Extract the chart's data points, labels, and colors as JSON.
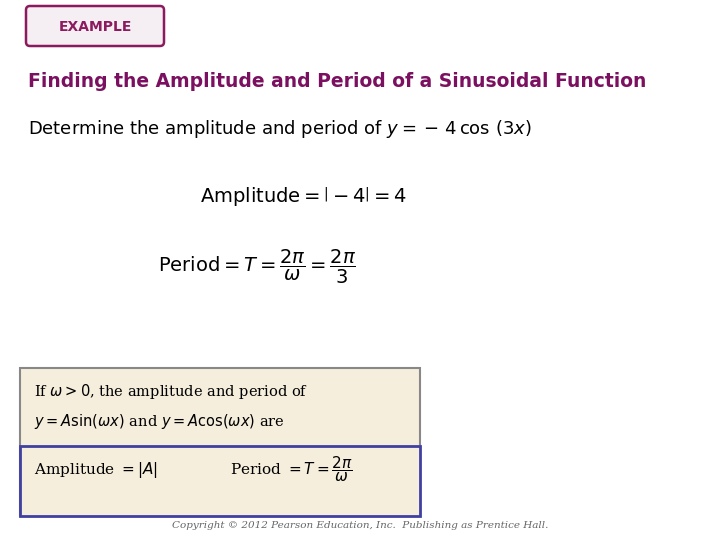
{
  "background_color": "#ffffff",
  "example_label": "EXAMPLE",
  "example_box_color": "#8b1a5e",
  "example_box_bg": "#f5eef3",
  "title": "Finding the Amplitude and Period of a Sinusoidal Function",
  "title_color": "#7b1060",
  "problem_line1": "Determine the amplitude and period of ",
  "problem_math": "$y = -\\,4 \\cos (3x)$",
  "amplitude_label": "Amplitude",
  "amplitude_math": "$= \\left|-4\\right| = 4$",
  "period_label": "Period",
  "period_math": "$= T = \\dfrac{2\\pi}{\\omega} = \\dfrac{2\\pi}{3}$",
  "box_outer_bg": "#f5eedc",
  "box_outer_edge": "#888888",
  "box_inner_bg": "#f5eedc",
  "box_inner_edge": "#4040a0",
  "box_text1": "If $\\omega > 0$, the amplitude and period of",
  "box_text2": "$y = A\\sin(\\omega x)$ and $y = A\\cos(\\omega x)$ are",
  "box_amp": "Amplitude $= |A|$",
  "box_period": "Period $= T = \\dfrac{2\\pi}{\\omega}$",
  "copyright": "Copyright © 2012 Pearson Education, Inc.  Publishing as Prentice Hall."
}
